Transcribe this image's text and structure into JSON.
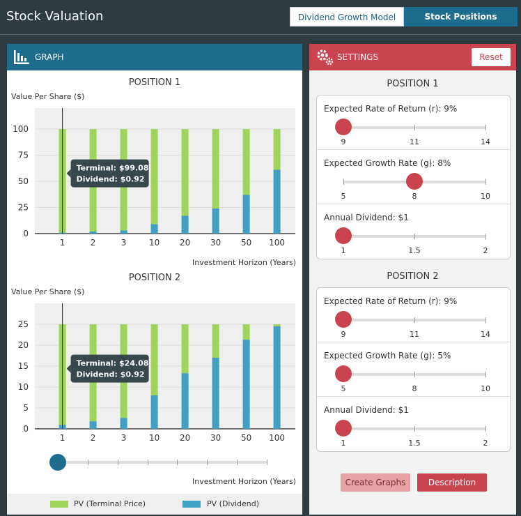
{
  "app": {
    "title": "Stock Valuation"
  },
  "tabs": [
    {
      "label": "Dividend Growth Model"
    },
    {
      "label": "Stock Positions"
    }
  ],
  "graph_panel": {
    "title": "GRAPH"
  },
  "settings_panel": {
    "title": "SETTINGS",
    "reset_label": "Reset",
    "positions": [
      {
        "title": "POSITION 1",
        "settings": [
          {
            "label": "Expected Rate of Return (r): 9%",
            "ticks": [
              "9",
              "11",
              "14"
            ],
            "value_fraction": 0.0
          },
          {
            "label": "Expected Growth Rate (g): 8%",
            "ticks": [
              "5",
              "8",
              "10"
            ],
            "value_fraction": 0.5
          },
          {
            "label": "Annual Dividend: $1",
            "ticks": [
              "1",
              "1.5",
              "2"
            ],
            "value_fraction": 0.0
          }
        ]
      },
      {
        "title": "POSITION 2",
        "settings": [
          {
            "label": "Expected Rate of Return (r): 9%",
            "ticks": [
              "9",
              "11",
              "14"
            ],
            "value_fraction": 0.0
          },
          {
            "label": "Expected Growth Rate (g): 5%",
            "ticks": [
              "5",
              "8",
              "10"
            ],
            "value_fraction": 0.0
          },
          {
            "label": "Annual Dividend: $1",
            "ticks": [
              "1",
              "1.5",
              "2"
            ],
            "value_fraction": 0.0
          }
        ]
      }
    ],
    "create_label": "Create Graphs",
    "description_label": "Description"
  },
  "legend": {
    "items": [
      {
        "label": "PV (Terminal Price)",
        "color": "#9fd55a"
      },
      {
        "label": "PV (Dividend)",
        "color": "#3fa0c4"
      }
    ]
  },
  "colors": {
    "terminal": "#9fd55a",
    "dividend": "#3fa0c4",
    "accent_blue": "#1e6d8e",
    "accent_red": "#c9444f"
  },
  "chart_data": [
    {
      "type": "bar",
      "title": "POSITION 1",
      "ylabel": "Value Per Share ($)",
      "xlabel": "Investment Horizon (Years)",
      "categories": [
        "1",
        "2",
        "3",
        "10",
        "20",
        "30",
        "50",
        "100"
      ],
      "ylim": [
        0,
        120
      ],
      "yticks": [
        "0",
        "25",
        "50",
        "75",
        "100"
      ],
      "series": [
        {
          "name": "PV (Dividend)",
          "values": [
            0.92,
            2,
            3,
            9,
            17,
            24,
            37,
            61
          ]
        },
        {
          "name": "PV (Terminal Price)",
          "values": [
            99.08,
            98,
            97,
            91,
            83,
            76,
            63,
            39
          ]
        }
      ],
      "tooltip": {
        "category_index": 0,
        "lines": [
          "Terminal: $99.08",
          "Dividend: $0.92"
        ]
      }
    },
    {
      "type": "bar",
      "title": "POSITION 2",
      "ylabel": "Value Per Share ($)",
      "xlabel": "Investment Horizon (Years)",
      "categories": [
        "1",
        "2",
        "3",
        "10",
        "20",
        "30",
        "50",
        "100"
      ],
      "ylim": [
        0,
        30
      ],
      "yticks": [
        "0",
        "5",
        "10",
        "15",
        "20",
        "25"
      ],
      "series": [
        {
          "name": "PV (Dividend)",
          "values": [
            0.92,
            1.8,
            2.6,
            8,
            13.3,
            17,
            21.3,
            24.5
          ]
        },
        {
          "name": "PV (Terminal Price)",
          "values": [
            24.08,
            23.2,
            22.4,
            17,
            11.7,
            8,
            3.7,
            0.5
          ]
        }
      ],
      "tooltip": {
        "category_index": 0,
        "lines": [
          "Terminal: $24.08",
          "Dividend: $0.92"
        ]
      }
    }
  ],
  "horizon_slider": {
    "value_fraction": 0.0
  }
}
